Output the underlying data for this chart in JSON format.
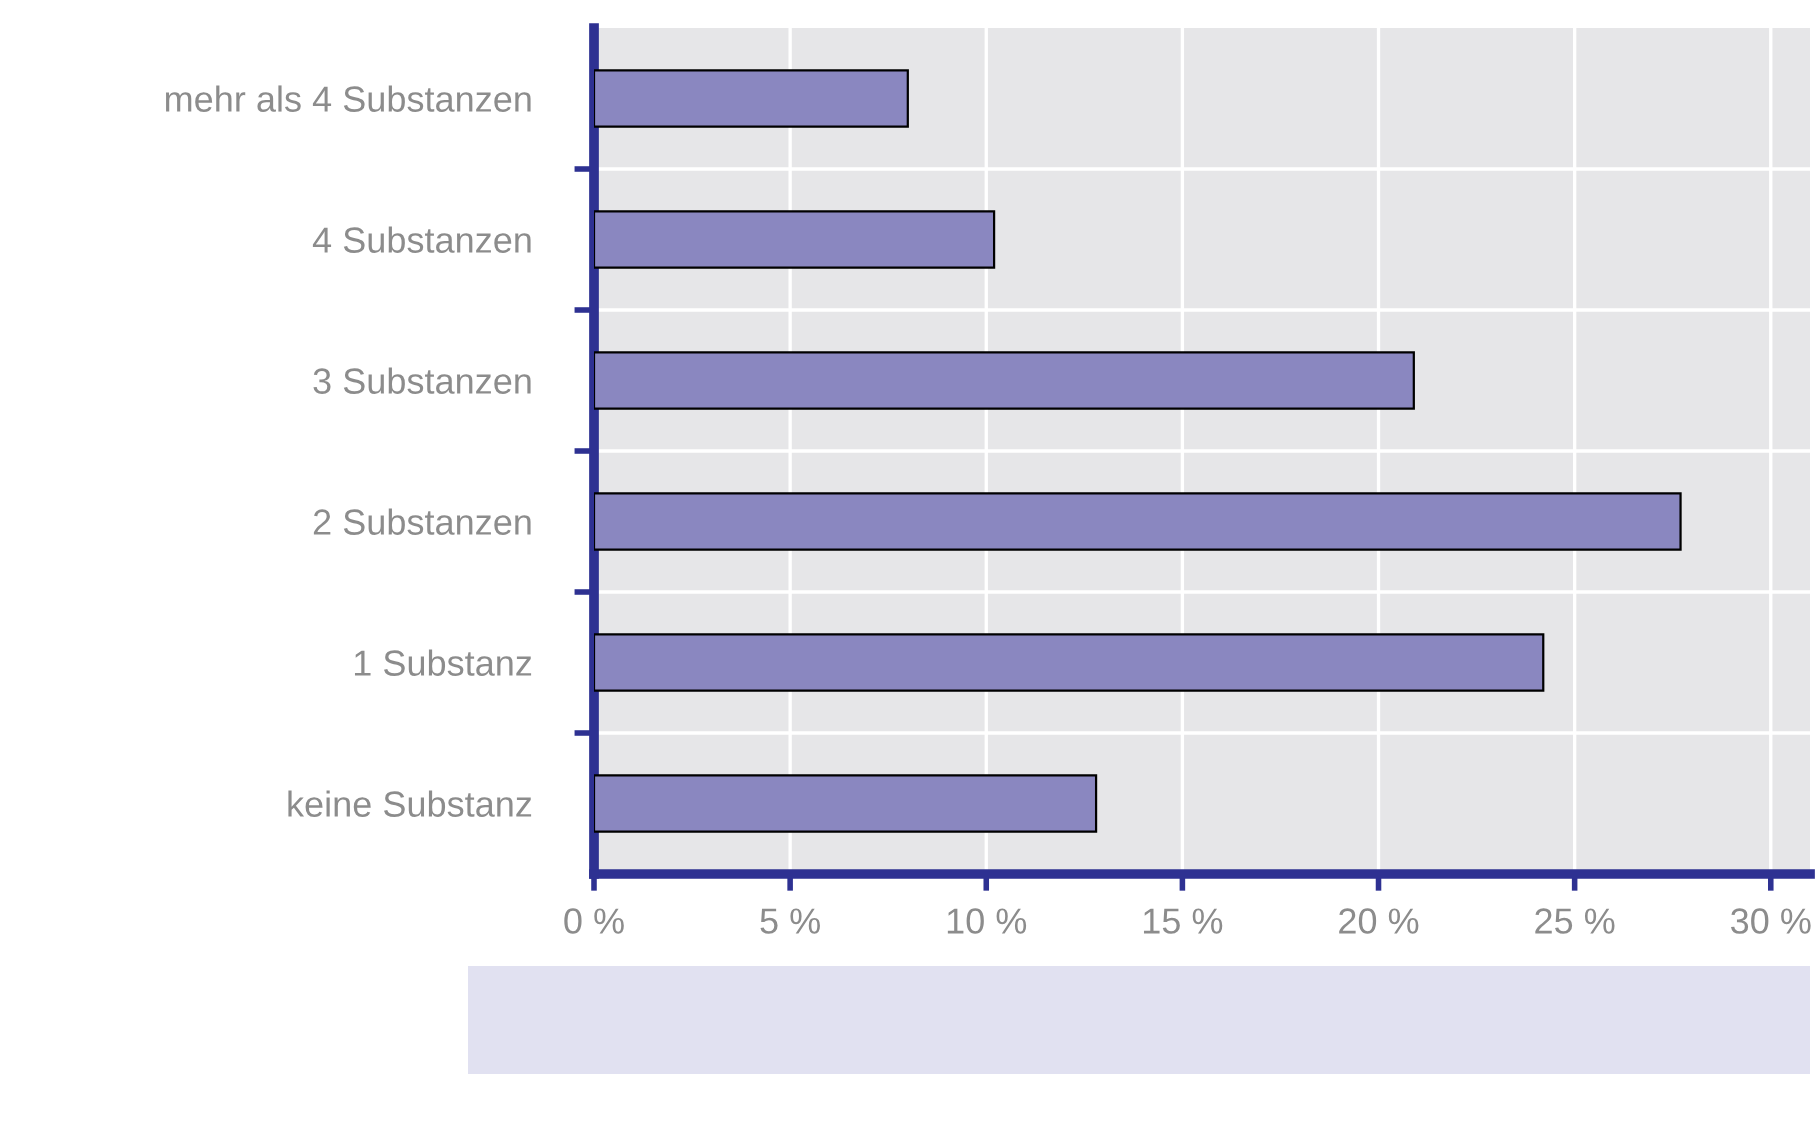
{
  "chart_data": {
    "type": "bar",
    "orientation": "horizontal",
    "categories": [
      "mehr als 4 Substanzen",
      "4 Substanzen",
      "3 Substanzen",
      "2 Substanzen",
      "1 Substanz",
      "keine Substanz"
    ],
    "values": [
      8.0,
      10.2,
      20.9,
      27.7,
      24.2,
      12.8
    ],
    "color": "#8a87c0",
    "xlim": [
      0,
      31
    ],
    "xticks": [
      {
        "value": 0,
        "label": "0 %"
      },
      {
        "value": 5,
        "label": "5 %"
      },
      {
        "value": 10,
        "label": "10 %"
      },
      {
        "value": 15,
        "label": "15 %"
      },
      {
        "value": 20,
        "label": "20 %"
      },
      {
        "value": 25,
        "label": "25 %"
      },
      {
        "value": 30,
        "label": "30 %"
      }
    ],
    "grid": true
  }
}
